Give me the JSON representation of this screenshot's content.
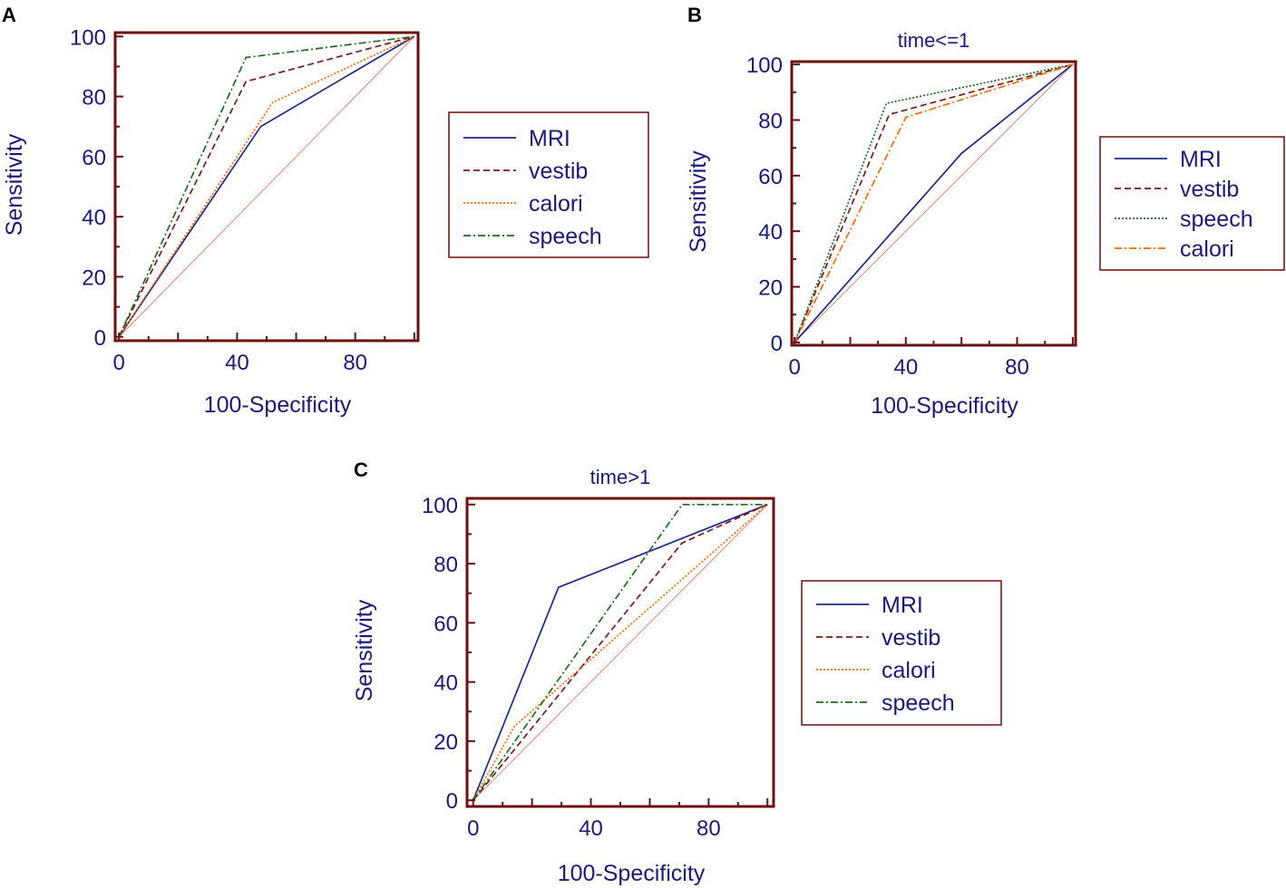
{
  "colors": {
    "frame": "#6b0f0f",
    "text": "#1a1a7a",
    "diagonal": "#e07b6a",
    "MRI": "#1f2a8a",
    "vestib": "#7a1a1a",
    "calori": "#ff6a00",
    "speech": "#1f6b1f"
  },
  "chart_data": [
    {
      "panel": "A",
      "type": "line",
      "title": "",
      "xlabel": "100-Specificity",
      "ylabel": "Sensitivity",
      "xlim": [
        0,
        100
      ],
      "ylim": [
        0,
        100
      ],
      "xticks": [
        0,
        40,
        80
      ],
      "yticks": [
        0,
        20,
        40,
        60,
        80,
        100
      ],
      "legend_position": "right",
      "reference_line": {
        "x": [
          0,
          100
        ],
        "y": [
          0,
          100
        ]
      },
      "series": [
        {
          "name": "MRI",
          "style": "solid",
          "x": [
            0,
            48,
            100
          ],
          "y": [
            0,
            70,
            100
          ]
        },
        {
          "name": "vestib",
          "style": "dashed",
          "x": [
            0,
            43,
            100
          ],
          "y": [
            0,
            85,
            100
          ]
        },
        {
          "name": "calori",
          "style": "dotted",
          "x": [
            0,
            52,
            100
          ],
          "y": [
            0,
            78,
            100
          ]
        },
        {
          "name": "speech",
          "style": "dashdot",
          "x": [
            0,
            43,
            100
          ],
          "y": [
            0,
            93,
            100
          ]
        }
      ]
    },
    {
      "panel": "B",
      "type": "line",
      "title": "time<=1",
      "xlabel": "100-Specificity",
      "ylabel": "Sensitivity",
      "xlim": [
        0,
        100
      ],
      "ylim": [
        0,
        100
      ],
      "xticks": [
        0,
        40,
        80
      ],
      "yticks": [
        0,
        20,
        40,
        60,
        80,
        100
      ],
      "legend_position": "right",
      "reference_line": {
        "x": [
          0,
          100
        ],
        "y": [
          0,
          100
        ]
      },
      "series": [
        {
          "name": "MRI",
          "style": "solid",
          "x": [
            0,
            60,
            100
          ],
          "y": [
            0,
            68,
            100
          ]
        },
        {
          "name": "vestib",
          "style": "dashed",
          "x": [
            0,
            34,
            100
          ],
          "y": [
            0,
            82,
            100
          ]
        },
        {
          "name": "speech",
          "style": "dotted",
          "x": [
            0,
            33,
            100
          ],
          "y": [
            0,
            86,
            100
          ]
        },
        {
          "name": "calori",
          "style": "dashdot",
          "x": [
            0,
            40,
            100
          ],
          "y": [
            0,
            81,
            100
          ]
        }
      ]
    },
    {
      "panel": "C",
      "type": "line",
      "title": "time>1",
      "xlabel": "100-Specificity",
      "ylabel": "Sensitivity",
      "xlim": [
        0,
        100
      ],
      "ylim": [
        0,
        100
      ],
      "xticks": [
        0,
        40,
        80
      ],
      "yticks": [
        0,
        20,
        40,
        60,
        80,
        100
      ],
      "legend_position": "right",
      "reference_line": {
        "x": [
          0,
          100
        ],
        "y": [
          0,
          100
        ]
      },
      "series": [
        {
          "name": "MRI",
          "style": "solid",
          "x": [
            0,
            29,
            100
          ],
          "y": [
            0,
            72,
            100
          ]
        },
        {
          "name": "vestib",
          "style": "dashed",
          "x": [
            0,
            71,
            100
          ],
          "y": [
            0,
            87,
            100
          ]
        },
        {
          "name": "calori",
          "style": "dotted",
          "x": [
            0,
            14,
            100
          ],
          "y": [
            0,
            25,
            100
          ]
        },
        {
          "name": "speech",
          "style": "dashdot",
          "x": [
            0,
            71,
            100
          ],
          "y": [
            0,
            100,
            100
          ]
        }
      ]
    }
  ]
}
